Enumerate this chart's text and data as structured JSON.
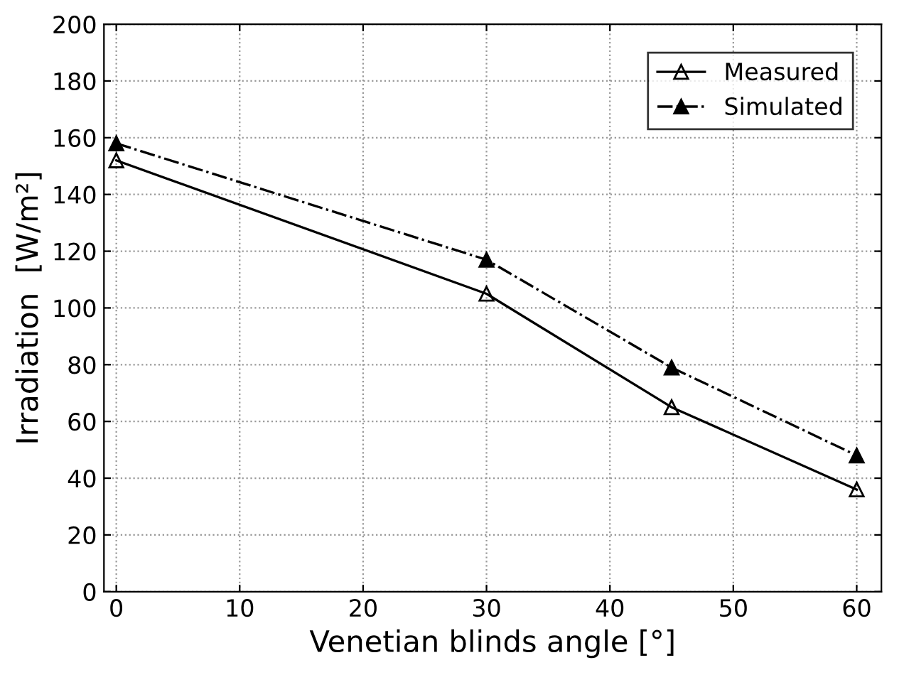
{
  "chart_data": {
    "type": "line",
    "xlabel": "Venetian blinds angle [°]",
    "ylabel": "Irradiation  [W/m²]",
    "x": [
      0,
      30,
      45,
      60
    ],
    "series": [
      {
        "name": "Measured",
        "color": "#000000",
        "values": [
          152,
          105,
          65,
          36
        ],
        "line_style": "solid"
      },
      {
        "name": "Simulated",
        "color": "#000000",
        "values": [
          158,
          117,
          79,
          48
        ],
        "line_style": "dashed"
      }
    ],
    "marker": "triangle",
    "xlim": [
      -1,
      62
    ],
    "xticks": [
      0,
      10,
      20,
      30,
      40,
      50,
      60
    ],
    "ylim": [
      0,
      200
    ],
    "yticks": [
      0,
      20,
      40,
      60,
      80,
      100,
      120,
      140,
      160,
      180,
      200
    ],
    "grid": true,
    "legend": "top right"
  }
}
